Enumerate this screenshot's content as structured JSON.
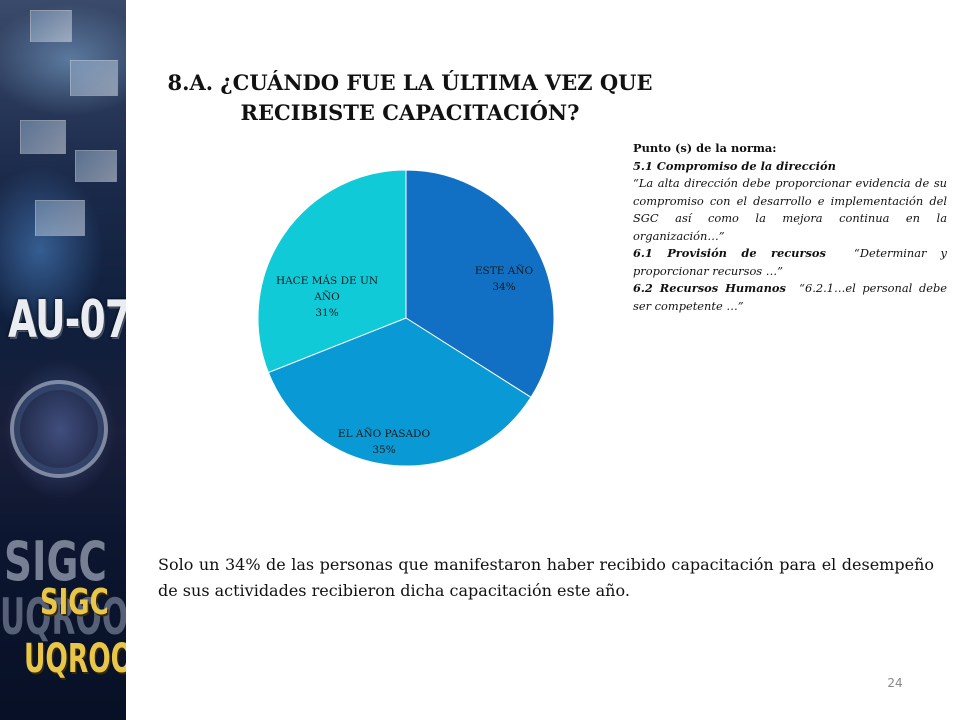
{
  "title": {
    "line1": "8.A. ¿CUÁNDO FUE LA ÚLTIMA VEZ QUE",
    "line2": "RECIBISTE CAPACITACIÓN?"
  },
  "chart_data": {
    "type": "pie",
    "title": "",
    "slices": [
      {
        "label": "ESTE AÑO",
        "value": 34,
        "display": "34%",
        "color": "#1170c4"
      },
      {
        "label": "EL AÑO PASADO",
        "value": 35,
        "display": "35%",
        "color": "#0999d5"
      },
      {
        "label_lines": [
          "HACE MÁS DE UN",
          "AÑO"
        ],
        "value": 31,
        "display": "31%",
        "color": "#11cad8"
      }
    ]
  },
  "norm": {
    "heading": "Punto (s) de la norma:",
    "s1_title": "5.1 Compromiso de la dirección",
    "s1_quote": "“La alta dirección debe proporcionar evidencia de su compromiso con el desarrollo e implementación del SGC así como la mejora continua en la organización…”",
    "s2_title": "6.1 Provisión de recursos",
    "s2_quote": "“Determinar y proporcionar recursos …”",
    "s3_title": "6.2 Recursos Humanos",
    "s3_quote": "“6.2.1…el personal debe ser competente …”"
  },
  "summary": "Solo un 34% de las personas que manifestaron haber recibido capacitación para el desempeño de sus actividades recibieron dicha capacitación este año.",
  "page_number": "24",
  "banner": {
    "code": "AU-07",
    "sigc": "SIGC",
    "uqroo": "UQROO"
  }
}
